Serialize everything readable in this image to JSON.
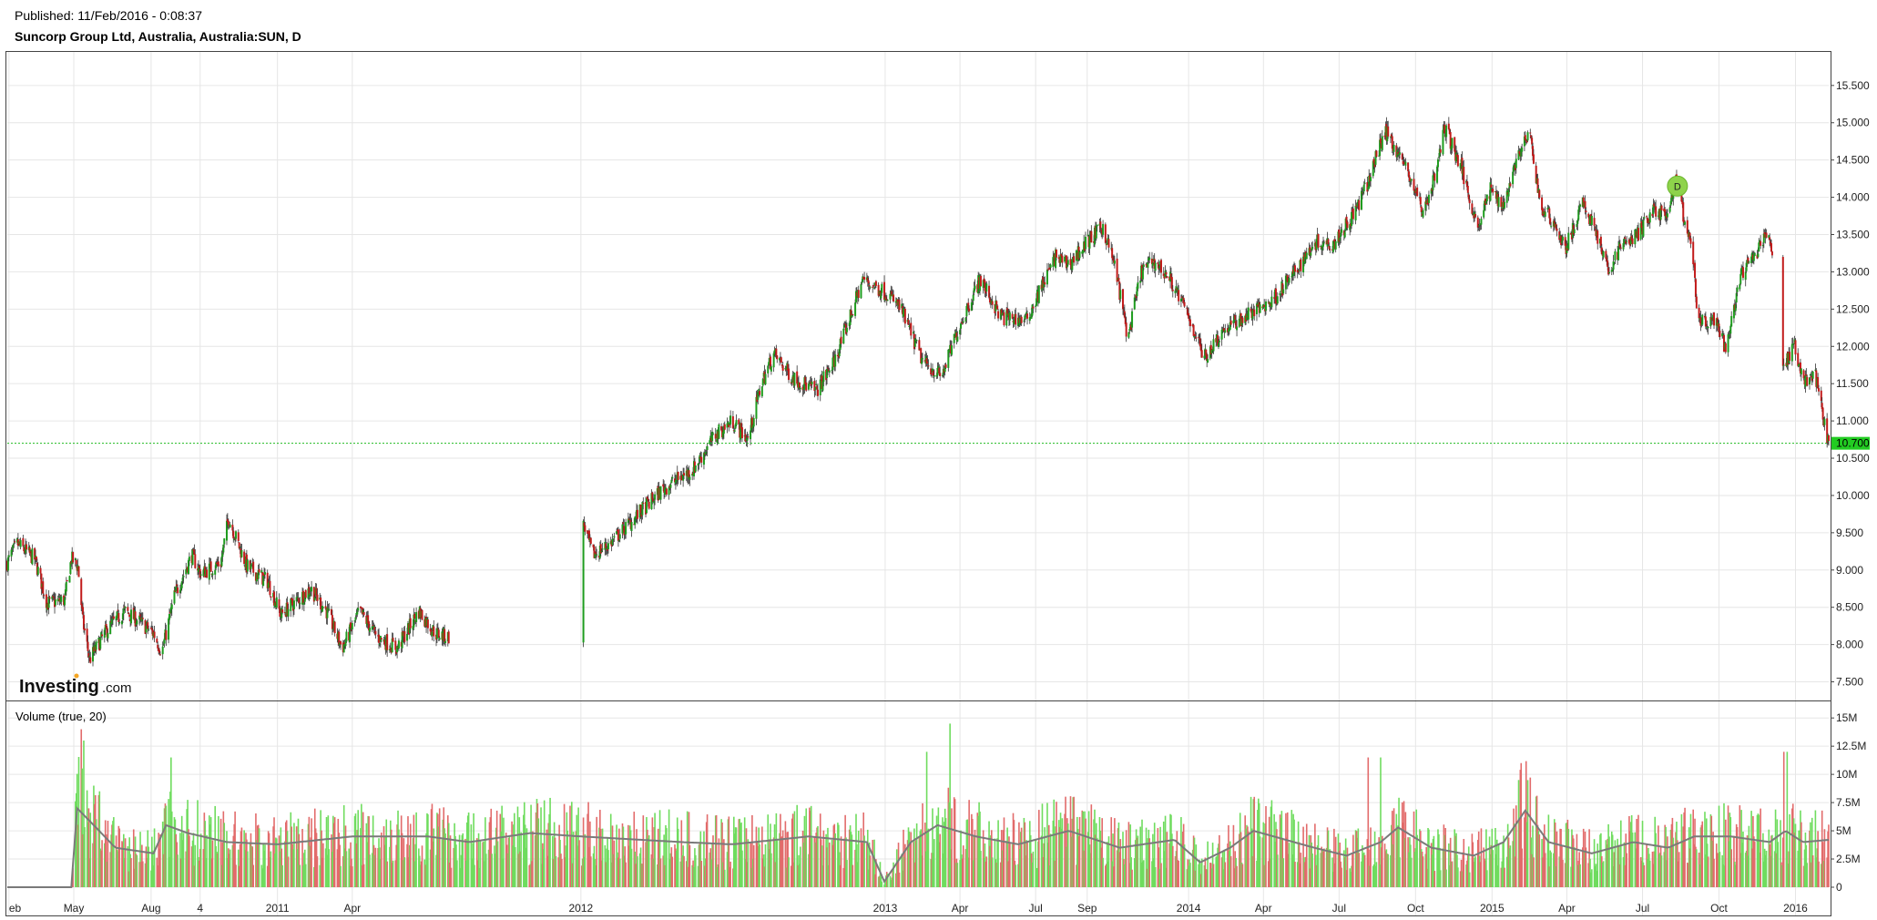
{
  "header": {
    "published": "Published: 11/Feb/2016 - 0:08:37",
    "title": "Suncorp Group Ltd, Australia, Australia:SUN, D"
  },
  "brand": {
    "name": "Investing",
    "suffix": ".com",
    "dot_color": "#f5a623"
  },
  "colors": {
    "up": "#1e9c1e",
    "down": "#c21b1b",
    "vol_up": "#6fdc5e",
    "vol_down": "#e26b6b",
    "ma": "#7a7a7a",
    "last_price_bg": "#22cc22",
    "grid": "#e6e6e6"
  },
  "chart_data": [
    {
      "type": "candlestick",
      "name": "price",
      "price_axis_ticks": [
        "15.500",
        "15.000",
        "14.500",
        "14.000",
        "13.500",
        "13.000",
        "12.500",
        "12.000",
        "11.500",
        "11.000",
        "10.500",
        "10.000",
        "9.500",
        "9.000",
        "8.500",
        "8.000",
        "7.500"
      ],
      "ylim": [
        7.25,
        15.95
      ],
      "last_price": "10.700",
      "marker": {
        "label": "D",
        "date": "2015-08-12",
        "price": 14.15
      },
      "x_axis": {
        "start": "2010-02-10",
        "end": "2016-02-10",
        "labels": [
          {
            "text": "eb",
            "date": "2010-02-12"
          },
          {
            "text": "May",
            "date": "2010-05-01"
          },
          {
            "text": "Aug",
            "date": "2010-08-02"
          },
          {
            "text": "4",
            "date": "2010-09-30"
          },
          {
            "text": "2011",
            "date": "2011-01-01"
          },
          {
            "text": "Apr",
            "date": "2011-04-01"
          },
          {
            "text": "2012",
            "date": "2012-01-01"
          },
          {
            "text": "2013",
            "date": "2013-01-01"
          },
          {
            "text": "Apr",
            "date": "2013-04-01"
          },
          {
            "text": "Jul",
            "date": "2013-07-01"
          },
          {
            "text": "Sep",
            "date": "2013-09-01"
          },
          {
            "text": "2014",
            "date": "2014-01-01"
          },
          {
            "text": "Apr",
            "date": "2014-04-01"
          },
          {
            "text": "Jul",
            "date": "2014-07-01"
          },
          {
            "text": "Oct",
            "date": "2014-10-01"
          },
          {
            "text": "2015",
            "date": "2015-01-01"
          },
          {
            "text": "Apr",
            "date": "2015-04-01"
          },
          {
            "text": "Jul",
            "date": "2015-07-01"
          },
          {
            "text": "Oct",
            "date": "2015-10-01"
          },
          {
            "text": "2016",
            "date": "2016-01-01"
          }
        ]
      },
      "price_path": [
        {
          "date": "2010-02-10",
          "close": 9.1
        },
        {
          "date": "2010-02-22",
          "close": 9.35
        },
        {
          "date": "2010-03-15",
          "close": 9.15
        },
        {
          "date": "2010-03-30",
          "close": 8.55
        },
        {
          "date": "2010-04-20",
          "close": 8.6
        },
        {
          "date": "2010-04-28",
          "close": 9.15
        },
        {
          "date": "2010-05-06",
          "close": 9.05
        },
        {
          "date": "2010-05-12",
          "close": 8.3
        },
        {
          "date": "2010-05-20",
          "close": 7.8
        },
        {
          "date": "2010-06-10",
          "close": 8.2
        },
        {
          "date": "2010-07-01",
          "close": 8.45
        },
        {
          "date": "2010-07-20",
          "close": 8.3
        },
        {
          "date": "2010-08-05",
          "close": 8.15
        },
        {
          "date": "2010-08-15",
          "close": 7.9
        },
        {
          "date": "2010-08-30",
          "close": 8.65
        },
        {
          "date": "2010-09-20",
          "close": 9.2
        },
        {
          "date": "2010-10-01",
          "close": 8.95
        },
        {
          "date": "2010-10-25",
          "close": 9.1
        },
        {
          "date": "2010-11-03",
          "close": 9.7
        },
        {
          "date": "2010-11-25",
          "close": 9.05
        },
        {
          "date": "2010-12-20",
          "close": 8.85
        },
        {
          "date": "2011-01-05",
          "close": 8.4
        },
        {
          "date": "2011-02-10",
          "close": 8.75
        },
        {
          "date": "2011-03-01",
          "close": 8.45
        },
        {
          "date": "2011-03-20",
          "close": 7.95
        },
        {
          "date": "2011-04-10",
          "close": 8.45
        },
        {
          "date": "2011-05-01",
          "close": 8.1
        },
        {
          "date": "2011-05-25",
          "close": 7.95
        },
        {
          "date": "2011-06-20",
          "close": 8.45
        },
        {
          "date": "2011-07-10",
          "close": 8.15
        },
        {
          "date": "2011-07-25",
          "close": 8.1
        },
        {
          "date": "2012-01-05",
          "close": 9.6
        },
        {
          "date": "2012-01-15",
          "close": 9.2
        },
        {
          "date": "2012-02-05",
          "close": 9.35
        },
        {
          "date": "2012-03-10",
          "close": 9.75
        },
        {
          "date": "2012-04-10",
          "close": 10.1
        },
        {
          "date": "2012-05-15",
          "close": 10.35
        },
        {
          "date": "2012-06-10",
          "close": 10.8
        },
        {
          "date": "2012-07-01",
          "close": 11.0
        },
        {
          "date": "2012-07-20",
          "close": 10.75
        },
        {
          "date": "2012-08-05",
          "close": 11.5
        },
        {
          "date": "2012-08-20",
          "close": 11.9
        },
        {
          "date": "2012-09-10",
          "close": 11.6
        },
        {
          "date": "2012-10-10",
          "close": 11.4
        },
        {
          "date": "2012-11-01",
          "close": 11.8
        },
        {
          "date": "2012-11-20",
          "close": 12.4
        },
        {
          "date": "2012-12-05",
          "close": 12.9
        },
        {
          "date": "2013-01-05",
          "close": 12.7
        },
        {
          "date": "2013-01-20",
          "close": 12.5
        },
        {
          "date": "2013-02-15",
          "close": 11.8
        },
        {
          "date": "2013-03-10",
          "close": 11.6
        },
        {
          "date": "2013-04-01",
          "close": 12.3
        },
        {
          "date": "2013-04-25",
          "close": 12.9
        },
        {
          "date": "2013-05-20",
          "close": 12.4
        },
        {
          "date": "2013-06-20",
          "close": 12.35
        },
        {
          "date": "2013-07-10",
          "close": 12.85
        },
        {
          "date": "2013-07-25",
          "close": 13.2
        },
        {
          "date": "2013-08-10",
          "close": 13.1
        },
        {
          "date": "2013-09-01",
          "close": 13.4
        },
        {
          "date": "2013-09-20",
          "close": 13.6
        },
        {
          "date": "2013-10-05",
          "close": 13.05
        },
        {
          "date": "2013-10-20",
          "close": 12.1
        },
        {
          "date": "2013-11-05",
          "close": 13.0
        },
        {
          "date": "2013-11-20",
          "close": 13.15
        },
        {
          "date": "2013-12-10",
          "close": 12.9
        },
        {
          "date": "2014-01-01",
          "close": 12.4
        },
        {
          "date": "2014-01-20",
          "close": 11.85
        },
        {
          "date": "2014-02-10",
          "close": 12.2
        },
        {
          "date": "2014-03-10",
          "close": 12.4
        },
        {
          "date": "2014-04-10",
          "close": 12.6
        },
        {
          "date": "2014-05-10",
          "close": 13.0
        },
        {
          "date": "2014-06-01",
          "close": 13.4
        },
        {
          "date": "2014-06-25",
          "close": 13.4
        },
        {
          "date": "2014-07-20",
          "close": 13.8
        },
        {
          "date": "2014-08-05",
          "close": 14.2
        },
        {
          "date": "2014-08-25",
          "close": 14.9
        },
        {
          "date": "2014-09-10",
          "close": 14.6
        },
        {
          "date": "2014-09-25",
          "close": 14.25
        },
        {
          "date": "2014-10-10",
          "close": 13.8
        },
        {
          "date": "2014-10-25",
          "close": 14.3
        },
        {
          "date": "2014-11-05",
          "close": 14.95
        },
        {
          "date": "2014-11-25",
          "close": 14.4
        },
        {
          "date": "2014-12-15",
          "close": 13.6
        },
        {
          "date": "2014-12-30",
          "close": 14.1
        },
        {
          "date": "2015-01-15",
          "close": 13.9
        },
        {
          "date": "2015-01-30",
          "close": 14.5
        },
        {
          "date": "2015-02-15",
          "close": 14.85
        },
        {
          "date": "2015-03-01",
          "close": 13.85
        },
        {
          "date": "2015-03-15",
          "close": 13.7
        },
        {
          "date": "2015-03-30",
          "close": 13.3
        },
        {
          "date": "2015-04-20",
          "close": 13.9
        },
        {
          "date": "2015-05-05",
          "close": 13.6
        },
        {
          "date": "2015-05-20",
          "close": 13.0
        },
        {
          "date": "2015-06-05",
          "close": 13.35
        },
        {
          "date": "2015-06-25",
          "close": 13.5
        },
        {
          "date": "2015-07-15",
          "close": 13.85
        },
        {
          "date": "2015-08-01",
          "close": 13.7
        },
        {
          "date": "2015-08-10",
          "close": 14.3
        },
        {
          "date": "2015-08-20",
          "close": 13.7
        },
        {
          "date": "2015-08-31",
          "close": 13.2
        },
        {
          "date": "2015-09-05",
          "close": 12.3
        },
        {
          "date": "2015-09-25",
          "close": 12.35
        },
        {
          "date": "2015-10-10",
          "close": 11.95
        },
        {
          "date": "2015-10-25",
          "close": 12.9
        },
        {
          "date": "2015-11-15",
          "close": 13.25
        },
        {
          "date": "2015-11-30",
          "close": 13.6
        },
        {
          "date": "2015-12-05",
          "close": 13.1
        },
        {
          "date": "2015-12-18",
          "close": 11.7
        },
        {
          "date": "2015-12-30",
          "close": 12.05
        },
        {
          "date": "2016-01-10",
          "close": 11.55
        },
        {
          "date": "2016-01-25",
          "close": 11.6
        },
        {
          "date": "2016-02-04",
          "close": 11.0
        },
        {
          "date": "2016-02-10",
          "close": 10.7
        }
      ]
    },
    {
      "type": "bar",
      "name": "volume",
      "label": "Volume (true, 20)",
      "volume_axis_ticks": [
        "15M",
        "12.5M",
        "10M",
        "7.5M",
        "5M",
        "2.5M",
        "0"
      ],
      "ylim": [
        0,
        15.5
      ],
      "unit": "M shares",
      "volume_path": [
        {
          "date": "2010-02-10",
          "level": 0.0
        },
        {
          "date": "2010-04-28",
          "level": 0.0
        },
        {
          "date": "2010-05-05",
          "level": 7.0
        },
        {
          "date": "2010-05-25",
          "level": 5.5
        },
        {
          "date": "2010-06-20",
          "level": 3.5
        },
        {
          "date": "2010-08-05",
          "level": 3.0
        },
        {
          "date": "2010-08-20",
          "level": 5.5
        },
        {
          "date": "2010-09-15",
          "level": 4.8
        },
        {
          "date": "2010-11-01",
          "level": 4.0
        },
        {
          "date": "2011-01-01",
          "level": 3.8
        },
        {
          "date": "2011-04-01",
          "level": 4.5
        },
        {
          "date": "2011-07-01",
          "level": 4.5
        },
        {
          "date": "2011-08-20",
          "level": 4.0
        },
        {
          "date": "2011-11-01",
          "level": 4.8
        },
        {
          "date": "2012-01-01",
          "level": 4.5
        },
        {
          "date": "2012-05-01",
          "level": 4.0
        },
        {
          "date": "2012-07-01",
          "level": 3.8
        },
        {
          "date": "2012-10-01",
          "level": 4.5
        },
        {
          "date": "2012-12-10",
          "level": 4.0
        },
        {
          "date": "2012-12-31",
          "level": 0.5
        },
        {
          "date": "2013-02-01",
          "level": 4.0
        },
        {
          "date": "2013-03-05",
          "level": 5.5
        },
        {
          "date": "2013-04-20",
          "level": 4.5
        },
        {
          "date": "2013-06-10",
          "level": 3.8
        },
        {
          "date": "2013-08-10",
          "level": 5.0
        },
        {
          "date": "2013-10-10",
          "level": 3.5
        },
        {
          "date": "2013-12-15",
          "level": 4.2
        },
        {
          "date": "2014-01-15",
          "level": 2.2
        },
        {
          "date": "2014-02-20",
          "level": 3.5
        },
        {
          "date": "2014-03-20",
          "level": 5.0
        },
        {
          "date": "2014-06-01",
          "level": 3.5
        },
        {
          "date": "2014-07-10",
          "level": 2.8
        },
        {
          "date": "2014-08-20",
          "level": 4.0
        },
        {
          "date": "2014-09-10",
          "level": 5.3
        },
        {
          "date": "2014-10-20",
          "level": 3.5
        },
        {
          "date": "2014-12-10",
          "level": 2.8
        },
        {
          "date": "2015-01-15",
          "level": 4.0
        },
        {
          "date": "2015-02-10",
          "level": 6.8
        },
        {
          "date": "2015-03-10",
          "level": 4.0
        },
        {
          "date": "2015-05-01",
          "level": 3.0
        },
        {
          "date": "2015-06-20",
          "level": 4.0
        },
        {
          "date": "2015-08-01",
          "level": 3.5
        },
        {
          "date": "2015-09-01",
          "level": 4.5
        },
        {
          "date": "2015-10-15",
          "level": 4.5
        },
        {
          "date": "2015-12-01",
          "level": 4.0
        },
        {
          "date": "2015-12-20",
          "level": 5.0
        },
        {
          "date": "2016-01-10",
          "level": 4.0
        },
        {
          "date": "2016-02-10",
          "level": 4.2
        }
      ],
      "peaks": [
        {
          "date": "2010-05-10",
          "value": 14.0
        },
        {
          "date": "2010-05-13",
          "value": 13.0
        },
        {
          "date": "2010-05-25",
          "value": 9.0
        },
        {
          "date": "2010-06-01",
          "value": 8.5
        },
        {
          "date": "2010-08-26",
          "value": 11.5
        },
        {
          "date": "2011-02-20",
          "value": 11.5
        },
        {
          "date": "2013-02-20",
          "value": 12.0
        },
        {
          "date": "2013-03-20",
          "value": 14.5
        },
        {
          "date": "2014-08-05",
          "value": 11.5
        },
        {
          "date": "2014-08-20",
          "value": 11.5
        },
        {
          "date": "2015-02-05",
          "value": 11.0
        },
        {
          "date": "2015-12-18",
          "value": 12.0
        },
        {
          "date": "2015-12-22",
          "value": 12.0
        }
      ]
    }
  ]
}
